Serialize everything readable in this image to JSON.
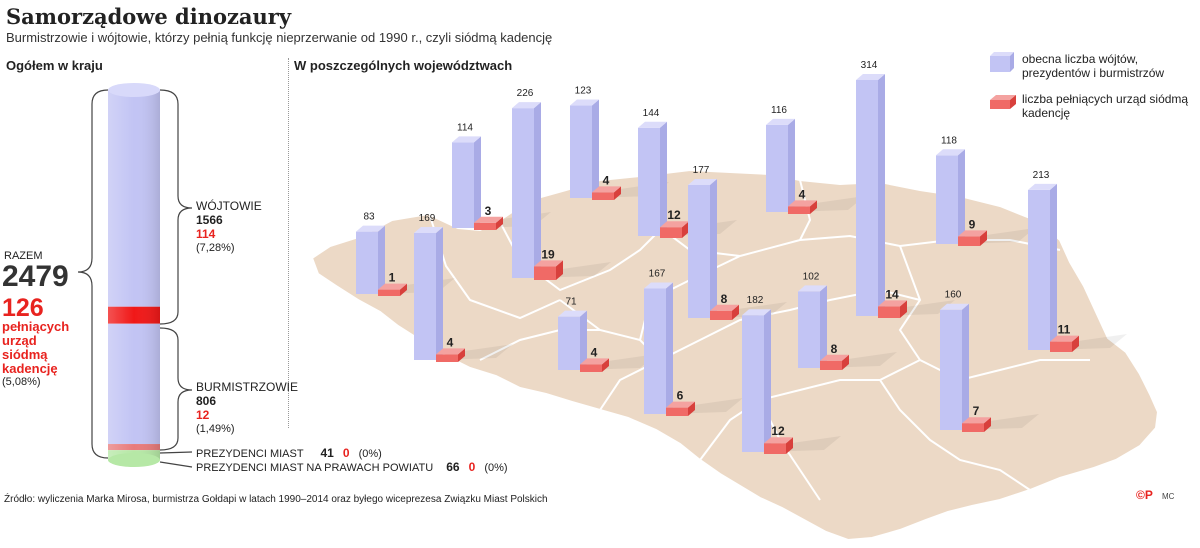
{
  "title": "Samorządowe dinozaury",
  "subtitle": "Burmistrzowie i wójtowie, którzy pełnią funkcję nieprzerwanie od 1990 r., czyli siódmą kadencję",
  "left_panel": {
    "header": "Ogółem w kraju",
    "razem_label": "RAZEM",
    "razem_total": "2479",
    "razem_seventh": "126",
    "razem_desc": "pełniących urząd siódmą kadencję",
    "razem_pct": "(5,08%)",
    "wojtowie": {
      "label": "WÓJTOWIE",
      "total": "1566",
      "seventh": "114",
      "pct": "(7,28%)"
    },
    "burmistrzowie": {
      "label": "BURMISTRZOWIE",
      "total": "806",
      "seventh": "12",
      "pct": "(1,49%)"
    },
    "prezydenci": {
      "label": "PREZYDENCI MIAST",
      "total": "41",
      "seventh": "0",
      "pct": "(0%)"
    },
    "prezydenci_powiat": {
      "label": "PREZYDENCI MIAST NA PRAWACH POWIATU",
      "total": "66",
      "seventh": "0",
      "pct": "(0%)"
    }
  },
  "right_panel": {
    "header": "W poszczególnych województwach"
  },
  "legend": {
    "current": "obecna liczba wójtów, prezydentów i burmistrzów",
    "seventh": "liczba pełniących urząd siódmą kadencję"
  },
  "source": "Źródło: wyliczenia Marka Mirosa, burmistrza Gołdapi w latach 1990–2014 oraz byłego wiceprezesa Związku Miast Polskich",
  "credit": "©P",
  "credit_initials": "MC",
  "colors": {
    "current": "#c2c4f4",
    "seventh": "#f06a66",
    "seventh_dark": "#e8231f",
    "map": "#ecd9c6",
    "map_line": "#ffffff",
    "green": "#b6e8a6"
  },
  "chart_data": [
    {
      "type": "bar",
      "stacked": true,
      "categories": [
        "WÓJTOWIE",
        "BURMISTRZOWIE",
        "PREZYDENCI MIAST",
        "PREZYDENCI MIAST NA PRAWACH POWIATU"
      ],
      "series": [
        {
          "name": "obecna liczba wójtów, prezydentów i burmistrzów",
          "values": [
            1566,
            806,
            41,
            66
          ]
        },
        {
          "name": "liczba pełniących urząd siódmą kadencję",
          "values": [
            114,
            12,
            0,
            0
          ]
        }
      ],
      "total": 2479,
      "title": "Ogółem w kraju"
    },
    {
      "type": "bar",
      "title": "W poszczególnych województwach",
      "series": [
        {
          "name": "obecna liczba wójtów, prezydentów i burmistrzów",
          "values": [
            83,
            169,
            114,
            226,
            123,
            144,
            177,
            116,
            314,
            118,
            213,
            71,
            167,
            182,
            102,
            160
          ]
        },
        {
          "name": "liczba pełniących urząd siódmą kadencję",
          "values": [
            1,
            4,
            3,
            19,
            4,
            12,
            8,
            4,
            14,
            9,
            11,
            4,
            6,
            12,
            8,
            7
          ]
        }
      ]
    }
  ]
}
